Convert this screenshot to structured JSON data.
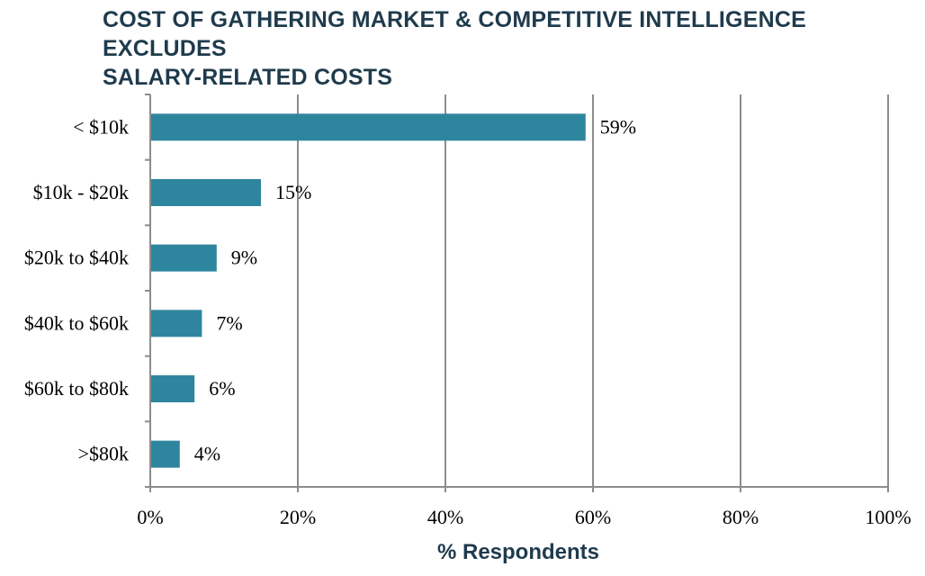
{
  "chart_data": {
    "type": "bar",
    "orientation": "horizontal",
    "title_lines": [
      "COST OF GATHERING MARKET & COMPETITIVE INTELLIGENCE EXCLUDES",
      "SALARY-RELATED COSTS"
    ],
    "categories": [
      "< $10k",
      "$10k - $20k",
      "$20k to $40k",
      "$40k to $60k",
      "$60k to $80k",
      ">$80k"
    ],
    "values": [
      59,
      15,
      9,
      7,
      6,
      4
    ],
    "data_labels": [
      "59%",
      "15%",
      "9%",
      "7%",
      "6%",
      "4%"
    ],
    "xlabel": "% Respondents",
    "ylabel": "",
    "xlim": [
      0,
      100
    ],
    "x_ticks": [
      0,
      20,
      40,
      60,
      80,
      100
    ],
    "x_tick_labels": [
      "0%",
      "20%",
      "40%",
      "60%",
      "80%",
      "100%"
    ],
    "grid": "vertical",
    "legend": "none",
    "colors": {
      "bar": "#2e869e",
      "grid": "#8c8c8c",
      "title": "#1f3b4d"
    }
  }
}
